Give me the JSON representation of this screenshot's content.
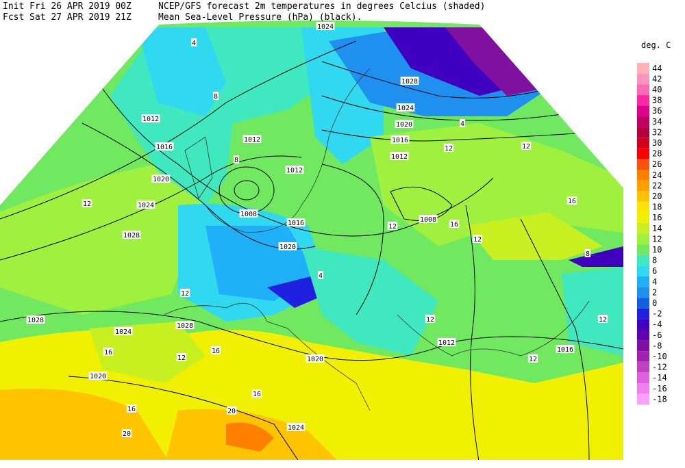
{
  "header": {
    "init": "Init  Fri 26 APR 2019 00Z",
    "forecast": "Fcst Sat 27 APR 2019 21Z",
    "title": "NCEP/GFS forecast 2m temperatures in degrees Celcius (shaded)",
    "subtitle": "Mean Sea-Level Pressure (hPa) (black)."
  },
  "legend": {
    "title": "deg. C",
    "entries": [
      {
        "label": "44",
        "color": "#ffb4b4"
      },
      {
        "label": "42",
        "color": "#ff96c0"
      },
      {
        "label": "40",
        "color": "#ff6ab4"
      },
      {
        "label": "38",
        "color": "#ff28a0"
      },
      {
        "label": "36",
        "color": "#e00090"
      },
      {
        "label": "34",
        "color": "#c00060"
      },
      {
        "label": "32",
        "color": "#b00040"
      },
      {
        "label": "30",
        "color": "#d00020"
      },
      {
        "label": "28",
        "color": "#ff0000"
      },
      {
        "label": "26",
        "color": "#ff5010"
      },
      {
        "label": "24",
        "color": "#ff8000"
      },
      {
        "label": "22",
        "color": "#ffa000"
      },
      {
        "label": "20",
        "color": "#ffc400"
      },
      {
        "label": "18",
        "color": "#ffe400"
      },
      {
        "label": "16",
        "color": "#f0f000"
      },
      {
        "label": "14",
        "color": "#c8f020"
      },
      {
        "label": "12",
        "color": "#a0f040"
      },
      {
        "label": "10",
        "color": "#70e860"
      },
      {
        "label": "8",
        "color": "#40e8c0"
      },
      {
        "label": "6",
        "color": "#30d8f0"
      },
      {
        "label": "4",
        "color": "#20b0f8"
      },
      {
        "label": "2",
        "color": "#2090f0"
      },
      {
        "label": "0",
        "color": "#1060e0"
      },
      {
        "label": "-2",
        "color": "#2020e0"
      },
      {
        "label": "-4",
        "color": "#4000c0"
      },
      {
        "label": "-6",
        "color": "#6000b0"
      },
      {
        "label": "-8",
        "color": "#8010a0"
      },
      {
        "label": "-10",
        "color": "#a020b0"
      },
      {
        "label": "-12",
        "color": "#c040c0"
      },
      {
        "label": "-14",
        "color": "#e060e0"
      },
      {
        "label": "-16",
        "color": "#f080f0"
      },
      {
        "label": "-18",
        "color": "#ffa0ff"
      }
    ]
  },
  "map": {
    "isobar_labels": [
      "1024",
      "1012",
      "1012",
      "1016",
      "1020",
      "1024",
      "1028",
      "1008",
      "1016",
      "1020",
      "1012",
      "1028",
      "1024",
      "1020",
      "1016",
      "1012",
      "1008",
      "1028",
      "1024",
      "1028",
      "1020",
      "1020",
      "1024",
      "1012",
      "1016"
    ],
    "temperature_labels": [
      "8",
      "8",
      "4",
      "12",
      "12",
      "12",
      "16",
      "12",
      "16",
      "12",
      "12",
      "12",
      "4",
      "16",
      "12",
      "16",
      "16",
      "20",
      "20",
      "16",
      "12",
      "12",
      "8",
      "4"
    ]
  }
}
